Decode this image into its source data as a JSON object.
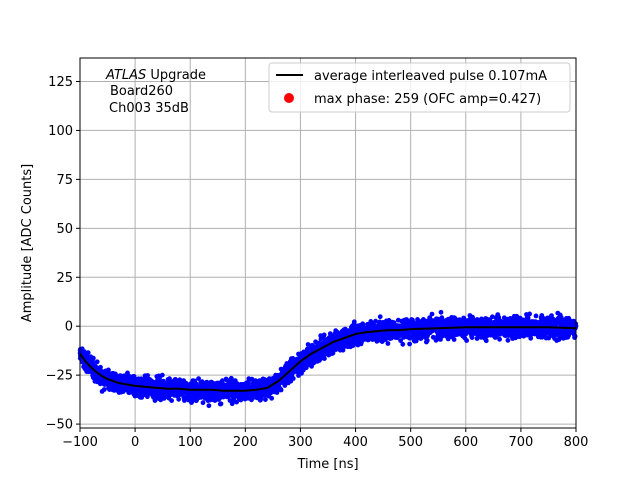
{
  "chart_data": {
    "type": "scatter",
    "title": "",
    "xlabel": "Time [ns]",
    "ylabel": "Amplitude [ADC Counts]",
    "xlim": [
      -100,
      800
    ],
    "ylim": [
      -52,
      137
    ],
    "xticks": [
      -100,
      0,
      100,
      200,
      300,
      400,
      500,
      600,
      700,
      800
    ],
    "yticks": [
      -50,
      -25,
      0,
      25,
      50,
      75,
      100,
      125
    ],
    "xtick_labels": [
      "−100",
      "0",
      "100",
      "200",
      "300",
      "400",
      "500",
      "600",
      "700",
      "800"
    ],
    "ytick_labels": [
      "−50",
      "−25",
      "0",
      "25",
      "50",
      "75",
      "100",
      "125"
    ],
    "grid": true,
    "annotation": {
      "italic": "ATLAS",
      "line1_rest": " Upgrade",
      "line2": "Board260",
      "line3": "Ch003 35dB"
    },
    "legend": {
      "placement": "top-right",
      "entries": [
        {
          "label": "average interleaved pulse 0.107mA",
          "kind": "line",
          "color": "#000000"
        },
        {
          "label": "max phase: 259 (OFC amp=0.427)",
          "kind": "marker",
          "color": "#ff0000"
        }
      ]
    },
    "series": [
      {
        "name": "samples",
        "kind": "scatter",
        "color": "#0000ff",
        "spread": 4,
        "x": [
          -100,
          -90,
          -80,
          -70,
          -60,
          -50,
          -40,
          -30,
          -20,
          -10,
          0,
          20,
          40,
          60,
          80,
          100,
          120,
          140,
          160,
          180,
          200,
          220,
          240,
          260,
          280,
          300,
          320,
          340,
          360,
          380,
          400,
          420,
          440,
          460,
          480,
          500,
          550,
          600,
          650,
          700,
          750,
          800
        ],
        "y": [
          -14,
          -18,
          -21,
          -23.5,
          -25.5,
          -27,
          -28,
          -29,
          -29.5,
          -30,
          -30.5,
          -31,
          -31.5,
          -32,
          -32,
          -32.5,
          -32.5,
          -32.5,
          -33,
          -33,
          -33,
          -32.5,
          -31.5,
          -28,
          -23,
          -18,
          -14,
          -11,
          -8,
          -6,
          -4,
          -3,
          -2.5,
          -2,
          -2,
          -1.5,
          -1,
          -0.5,
          -0.5,
          -0.5,
          -0.5,
          -1
        ]
      },
      {
        "name": "average interleaved pulse 0.107mA",
        "kind": "line",
        "color": "#000000",
        "x": [
          -100,
          -90,
          -80,
          -70,
          -60,
          -50,
          -40,
          -30,
          -20,
          -10,
          0,
          20,
          40,
          60,
          80,
          100,
          120,
          140,
          160,
          180,
          200,
          220,
          240,
          260,
          280,
          300,
          320,
          340,
          360,
          380,
          400,
          420,
          440,
          460,
          480,
          500,
          550,
          600,
          650,
          700,
          750,
          800
        ],
        "y": [
          -14,
          -18,
          -21,
          -23.5,
          -25.5,
          -27,
          -28,
          -29,
          -29.5,
          -30,
          -30.5,
          -31,
          -31.5,
          -32,
          -32,
          -32.5,
          -32.5,
          -32.5,
          -33,
          -33,
          -33,
          -32.5,
          -31.5,
          -28,
          -23,
          -18,
          -14,
          -11,
          -8,
          -6,
          -4,
          -3,
          -2.5,
          -2,
          -2,
          -1.5,
          -1,
          -0.5,
          -0.5,
          -0.5,
          -0.5,
          -1
        ]
      }
    ]
  },
  "colors": {
    "scatter": "#0000ff",
    "line": "#000000",
    "marker": "#ff0000",
    "grid": "#b0b0b0",
    "frame": "#000000"
  }
}
